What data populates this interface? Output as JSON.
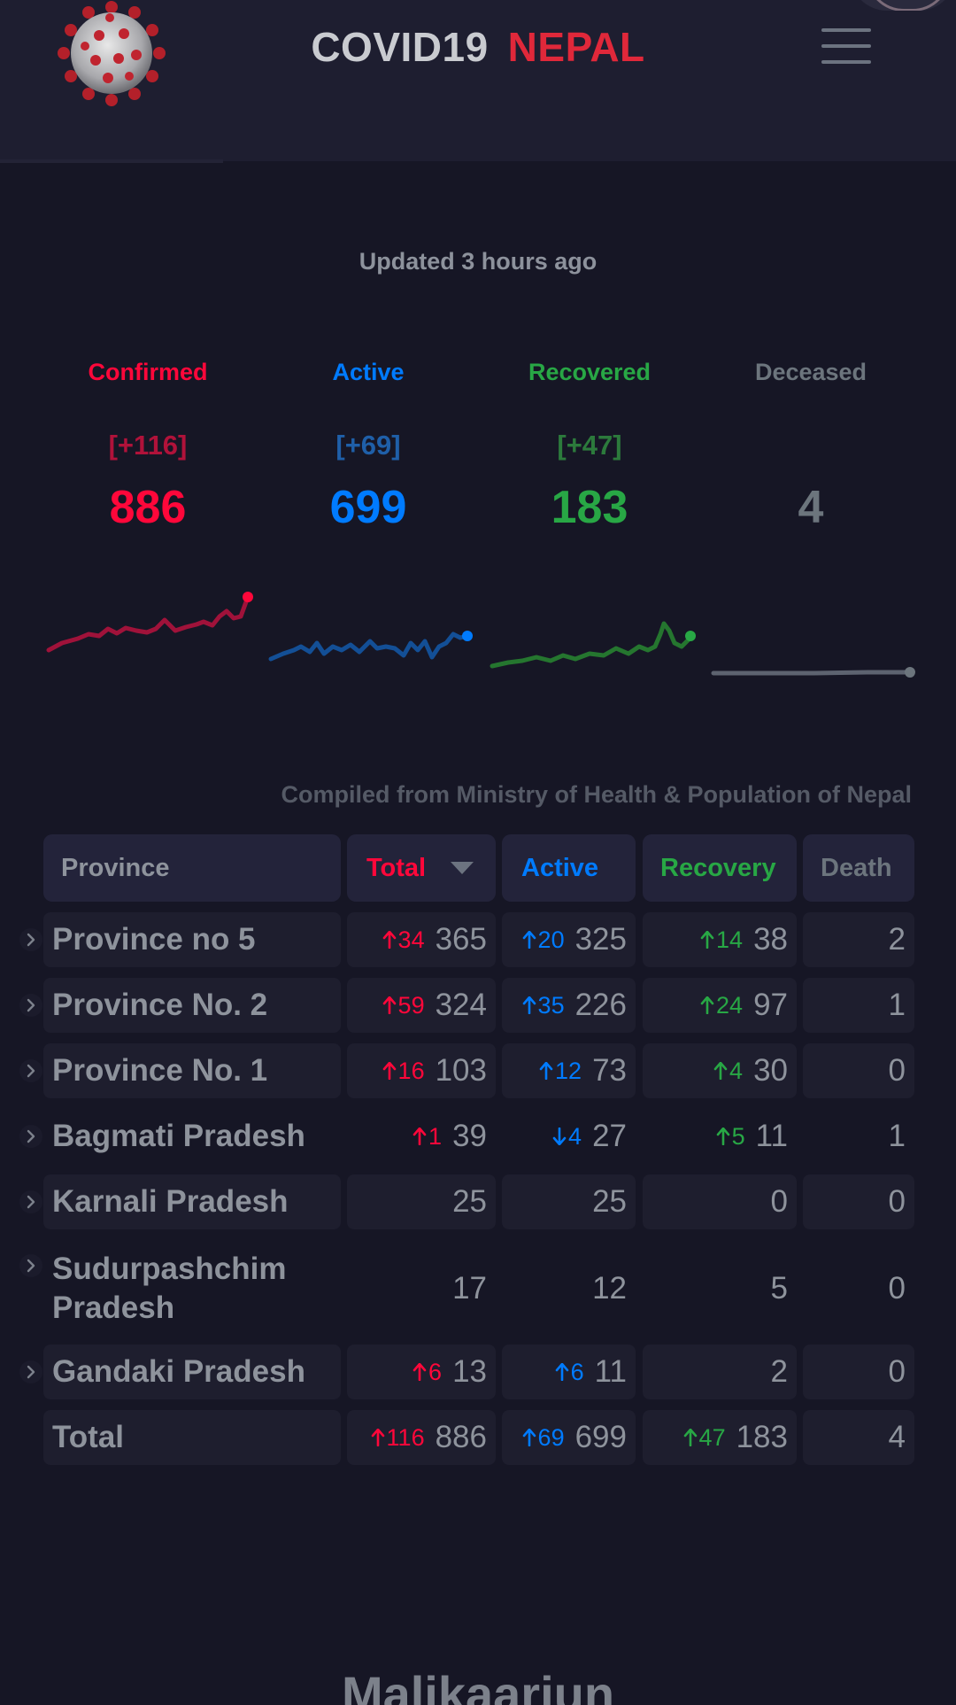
{
  "header": {
    "brand_word1": "COVID19",
    "brand_word2": "NEPAL",
    "logo_icon": "coronavirus-icon",
    "menu_icon": "hamburger-icon"
  },
  "updated_text": "Updated 3 hours ago",
  "levels": [
    {
      "label": "Confirmed",
      "delta": "[+116]",
      "value": "886",
      "color": "#ff073a"
    },
    {
      "label": "Active",
      "delta": "[+69]",
      "value": "699",
      "color": "#007bff"
    },
    {
      "label": "Recovered",
      "delta": "[+47]",
      "value": "183",
      "color": "#28a745"
    },
    {
      "label": "Deceased",
      "delta": "",
      "value": "4",
      "color": "#6c757d"
    }
  ],
  "source_text": "Compiled from Ministry of Health & Population of Nepal",
  "table": {
    "headers": {
      "province": "Province",
      "total": "Total",
      "active": "Active",
      "recovery": "Recovery",
      "death": "Death"
    },
    "rows": [
      {
        "name": "Province no 5",
        "total_delta": "34",
        "total": "365",
        "active_delta": "20",
        "active_dir": "up",
        "active": "325",
        "rec_delta": "14",
        "rec": "38",
        "death": "2"
      },
      {
        "name": "Province No. 2",
        "total_delta": "59",
        "total": "324",
        "active_delta": "35",
        "active_dir": "up",
        "active": "226",
        "rec_delta": "24",
        "rec": "97",
        "death": "1"
      },
      {
        "name": "Province No. 1",
        "total_delta": "16",
        "total": "103",
        "active_delta": "12",
        "active_dir": "up",
        "active": "73",
        "rec_delta": "4",
        "rec": "30",
        "death": "0"
      },
      {
        "name": "Bagmati Pradesh",
        "total_delta": "1",
        "total": "39",
        "active_delta": "4",
        "active_dir": "down",
        "active": "27",
        "rec_delta": "5",
        "rec": "11",
        "death": "1"
      },
      {
        "name": "Karnali Pradesh",
        "total_delta": "",
        "total": "25",
        "active_delta": "",
        "active_dir": "",
        "active": "25",
        "rec_delta": "",
        "rec": "0",
        "death": "0"
      },
      {
        "name": "Sudurpashchim Pradesh",
        "total_delta": "",
        "total": "17",
        "active_delta": "",
        "active_dir": "",
        "active": "12",
        "rec_delta": "",
        "rec": "5",
        "death": "0"
      },
      {
        "name": "Gandaki Pradesh",
        "total_delta": "6",
        "total": "13",
        "active_delta": "6",
        "active_dir": "up",
        "active": "11",
        "rec_delta": "",
        "rec": "2",
        "death": "0"
      }
    ],
    "total_row": {
      "name": "Total",
      "total_delta": "116",
      "total": "886",
      "active_delta": "69",
      "active": "699",
      "rec_delta": "47",
      "rec": "183",
      "death": "4"
    }
  },
  "next_section_title": "Malikaarjun"
}
